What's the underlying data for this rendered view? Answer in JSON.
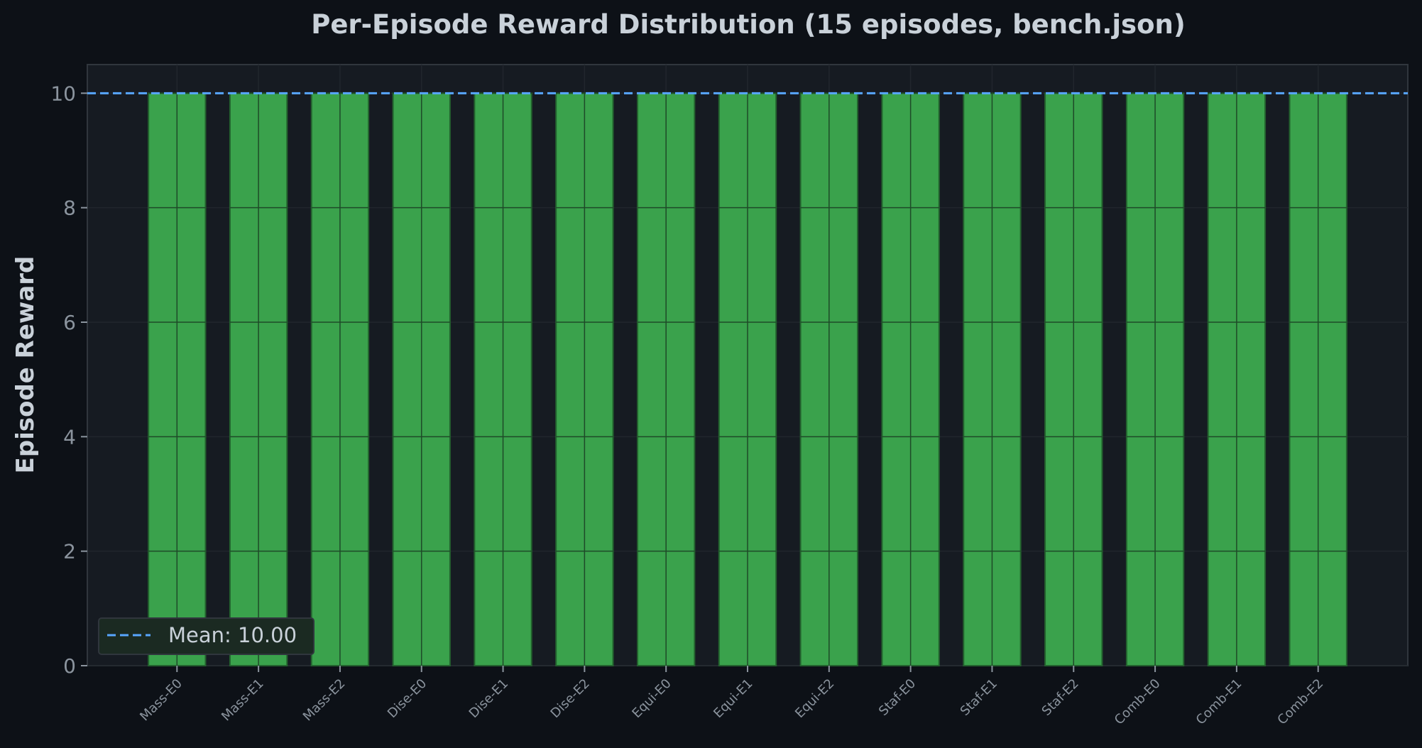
{
  "colors": {
    "background": "#0d1117",
    "plot_background": "#161b22",
    "bar": "#3aa24c",
    "bar_edge": "#23622e",
    "mean_line": "#58a6ff",
    "text": "#c9d1d9",
    "tick_text": "#8b949e",
    "grid": "#21262d",
    "axis": "#30363d"
  },
  "chart_data": {
    "type": "bar",
    "title": "Per-Episode Reward Distribution (15 episodes, bench.json)",
    "xlabel": "",
    "ylabel": "Episode Reward",
    "categories": [
      "Mass-E0",
      "Mass-E1",
      "Mass-E2",
      "Dise-E0",
      "Dise-E1",
      "Dise-E2",
      "Equi-E0",
      "Equi-E1",
      "Equi-E2",
      "Staf-E0",
      "Staf-E1",
      "Staf-E2",
      "Comb-E0",
      "Comb-E1",
      "Comb-E2"
    ],
    "values": [
      10,
      10,
      10,
      10,
      10,
      10,
      10,
      10,
      10,
      10,
      10,
      10,
      10,
      10,
      10
    ],
    "ylim": [
      0,
      10.5
    ],
    "yticks": [
      0,
      2,
      4,
      6,
      8,
      10
    ],
    "grid": true,
    "mean": 10.0,
    "legend": {
      "placement": "lower-left",
      "entries": [
        {
          "label": "Mean: 10.00",
          "style": "dashed-line"
        }
      ]
    }
  }
}
